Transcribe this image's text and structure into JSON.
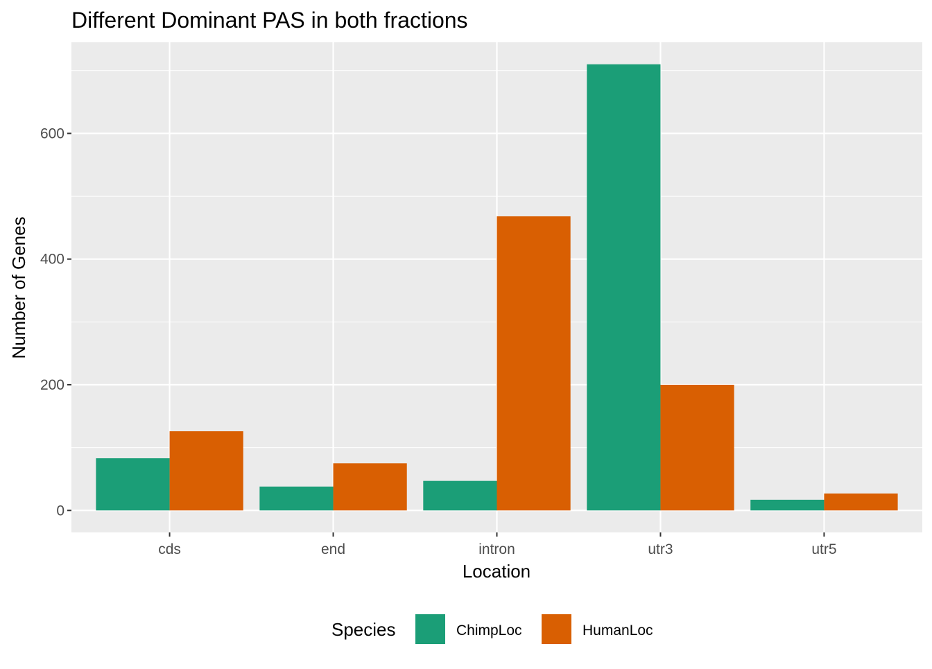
{
  "chart_data": {
    "type": "bar",
    "title": "Different Dominant PAS in both fractions",
    "xlabel": "Location",
    "ylabel": "Number of Genes",
    "categories": [
      "cds",
      "end",
      "intron",
      "utr3",
      "utr5"
    ],
    "series": [
      {
        "name": "ChimpLoc",
        "color": "#1B9E77",
        "values": [
          83,
          38,
          47,
          710,
          17
        ]
      },
      {
        "name": "HumanLoc",
        "color": "#D95F02",
        "values": [
          126,
          75,
          468,
          200,
          27
        ]
      }
    ],
    "ylim": [
      -35,
      745
    ],
    "yticks": [
      0,
      200,
      400,
      600
    ],
    "ytick_labels": [
      "0",
      "200",
      "400",
      "600"
    ],
    "grid": true,
    "panel_background": "#EBEBEB",
    "grid_color": "#FFFFFF",
    "legend": {
      "title": "Species",
      "position": "bottom",
      "items": [
        "ChimpLoc",
        "HumanLoc"
      ]
    }
  }
}
